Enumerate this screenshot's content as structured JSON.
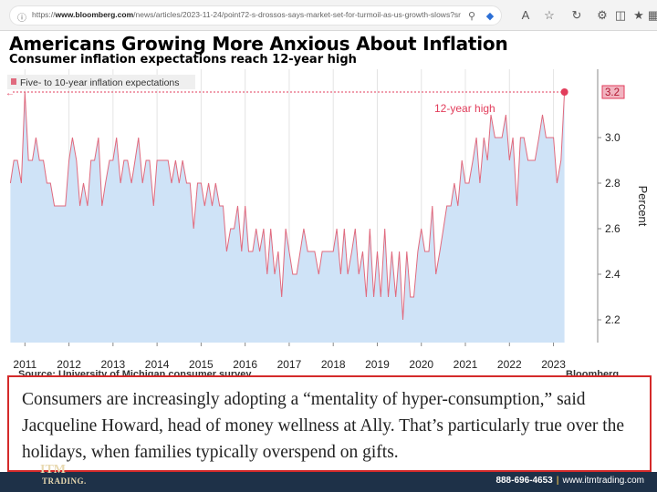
{
  "browser": {
    "url_prefix": "https://",
    "url_domain": "www.bloomberg.com",
    "url_path": "/news/articles/2023-11-24/point72-s-drossos-says-market-set-for-turmoil-as-us-growth-slows?sref=rWFqAg...",
    "icons": [
      "info-icon",
      "search-icon",
      "tag-icon",
      "read-aloud-icon",
      "favorite-icon",
      "refresh-icon",
      "extensions-icon",
      "split-screen-icon",
      "favorites-bar-icon",
      "collections-icon",
      "more-icon"
    ]
  },
  "chart_data": {
    "type": "area",
    "title": "Americans Growing More Anxious About Inflation",
    "subtitle": "Consumer inflation expectations reach 12-year high",
    "legend": "Five- to 10-year inflation expectations",
    "legend_position": "top-left",
    "ylabel": "Percent",
    "ylim": [
      2.1,
      3.3
    ],
    "yticks": [
      "2.2",
      "2.4",
      "2.6",
      "2.8",
      "3.0"
    ],
    "xticks": [
      "2011",
      "2012",
      "2013",
      "2014",
      "2015",
      "2016",
      "2017",
      "2018",
      "2019",
      "2020",
      "2021",
      "2022",
      "2023"
    ],
    "xlim": [
      2010.6,
      2023.9
    ],
    "grid": "vertical",
    "annotation": "12-year high",
    "highlight_value": "3.2",
    "series": [
      {
        "values": [
          [
            2010.67,
            2.8
          ],
          [
            2010.75,
            2.9
          ],
          [
            2010.83,
            2.9
          ],
          [
            2010.92,
            2.8
          ],
          [
            2011.0,
            3.2
          ],
          [
            2011.08,
            2.9
          ],
          [
            2011.17,
            2.9
          ],
          [
            2011.25,
            3.0
          ],
          [
            2011.33,
            2.9
          ],
          [
            2011.42,
            2.9
          ],
          [
            2011.5,
            2.8
          ],
          [
            2011.58,
            2.8
          ],
          [
            2011.67,
            2.7
          ],
          [
            2011.75,
            2.7
          ],
          [
            2011.83,
            2.7
          ],
          [
            2011.92,
            2.7
          ],
          [
            2012.0,
            2.9
          ],
          [
            2012.08,
            3.0
          ],
          [
            2012.17,
            2.9
          ],
          [
            2012.25,
            2.7
          ],
          [
            2012.33,
            2.8
          ],
          [
            2012.42,
            2.7
          ],
          [
            2012.5,
            2.9
          ],
          [
            2012.58,
            2.9
          ],
          [
            2012.67,
            3.0
          ],
          [
            2012.75,
            2.7
          ],
          [
            2012.83,
            2.8
          ],
          [
            2012.92,
            2.9
          ],
          [
            2013.0,
            2.9
          ],
          [
            2013.08,
            3.0
          ],
          [
            2013.17,
            2.8
          ],
          [
            2013.25,
            2.9
          ],
          [
            2013.33,
            2.9
          ],
          [
            2013.42,
            2.8
          ],
          [
            2013.5,
            2.9
          ],
          [
            2013.58,
            3.0
          ],
          [
            2013.67,
            2.8
          ],
          [
            2013.75,
            2.9
          ],
          [
            2013.83,
            2.9
          ],
          [
            2013.92,
            2.7
          ],
          [
            2014.0,
            2.9
          ],
          [
            2014.08,
            2.9
          ],
          [
            2014.17,
            2.9
          ],
          [
            2014.25,
            2.9
          ],
          [
            2014.33,
            2.8
          ],
          [
            2014.42,
            2.9
          ],
          [
            2014.5,
            2.8
          ],
          [
            2014.58,
            2.9
          ],
          [
            2014.67,
            2.8
          ],
          [
            2014.75,
            2.8
          ],
          [
            2014.83,
            2.6
          ],
          [
            2014.92,
            2.8
          ],
          [
            2015.0,
            2.8
          ],
          [
            2015.08,
            2.7
          ],
          [
            2015.17,
            2.8
          ],
          [
            2015.25,
            2.7
          ],
          [
            2015.33,
            2.8
          ],
          [
            2015.42,
            2.7
          ],
          [
            2015.5,
            2.7
          ],
          [
            2015.58,
            2.5
          ],
          [
            2015.67,
            2.6
          ],
          [
            2015.75,
            2.6
          ],
          [
            2015.83,
            2.7
          ],
          [
            2015.92,
            2.5
          ],
          [
            2016.0,
            2.7
          ],
          [
            2016.08,
            2.5
          ],
          [
            2016.17,
            2.5
          ],
          [
            2016.25,
            2.6
          ],
          [
            2016.33,
            2.5
          ],
          [
            2016.42,
            2.6
          ],
          [
            2016.5,
            2.4
          ],
          [
            2016.58,
            2.6
          ],
          [
            2016.67,
            2.4
          ],
          [
            2016.75,
            2.5
          ],
          [
            2016.83,
            2.3
          ],
          [
            2016.92,
            2.6
          ],
          [
            2017.0,
            2.5
          ],
          [
            2017.08,
            2.4
          ],
          [
            2017.17,
            2.4
          ],
          [
            2017.25,
            2.5
          ],
          [
            2017.33,
            2.6
          ],
          [
            2017.42,
            2.5
          ],
          [
            2017.5,
            2.5
          ],
          [
            2017.58,
            2.5
          ],
          [
            2017.67,
            2.4
          ],
          [
            2017.75,
            2.5
          ],
          [
            2017.83,
            2.5
          ],
          [
            2017.92,
            2.5
          ],
          [
            2018.0,
            2.5
          ],
          [
            2018.08,
            2.6
          ],
          [
            2018.17,
            2.4
          ],
          [
            2018.25,
            2.6
          ],
          [
            2018.33,
            2.4
          ],
          [
            2018.42,
            2.5
          ],
          [
            2018.5,
            2.6
          ],
          [
            2018.58,
            2.4
          ],
          [
            2018.67,
            2.5
          ],
          [
            2018.75,
            2.3
          ],
          [
            2018.83,
            2.6
          ],
          [
            2018.92,
            2.3
          ],
          [
            2019.0,
            2.5
          ],
          [
            2019.08,
            2.3
          ],
          [
            2019.17,
            2.6
          ],
          [
            2019.25,
            2.3
          ],
          [
            2019.33,
            2.5
          ],
          [
            2019.42,
            2.3
          ],
          [
            2019.5,
            2.5
          ],
          [
            2019.58,
            2.2
          ],
          [
            2019.67,
            2.5
          ],
          [
            2019.75,
            2.3
          ],
          [
            2019.83,
            2.3
          ],
          [
            2019.92,
            2.5
          ],
          [
            2020.0,
            2.6
          ],
          [
            2020.08,
            2.5
          ],
          [
            2020.17,
            2.5
          ],
          [
            2020.25,
            2.7
          ],
          [
            2020.33,
            2.4
          ],
          [
            2020.42,
            2.5
          ],
          [
            2020.5,
            2.6
          ],
          [
            2020.58,
            2.7
          ],
          [
            2020.67,
            2.7
          ],
          [
            2020.75,
            2.8
          ],
          [
            2020.83,
            2.7
          ],
          [
            2020.92,
            2.9
          ],
          [
            2021.0,
            2.8
          ],
          [
            2021.08,
            2.8
          ],
          [
            2021.17,
            2.9
          ],
          [
            2021.25,
            3.0
          ],
          [
            2021.33,
            2.8
          ],
          [
            2021.42,
            3.0
          ],
          [
            2021.5,
            2.9
          ],
          [
            2021.58,
            3.1
          ],
          [
            2021.67,
            3.0
          ],
          [
            2021.75,
            3.0
          ],
          [
            2021.83,
            3.0
          ],
          [
            2021.92,
            3.1
          ],
          [
            2022.0,
            2.9
          ],
          [
            2022.08,
            3.0
          ],
          [
            2022.17,
            2.7
          ],
          [
            2022.25,
            3.0
          ],
          [
            2022.33,
            3.0
          ],
          [
            2022.42,
            2.9
          ],
          [
            2022.5,
            2.9
          ],
          [
            2022.58,
            2.9
          ],
          [
            2022.67,
            3.0
          ],
          [
            2022.75,
            3.1
          ],
          [
            2022.83,
            3.0
          ],
          [
            2022.92,
            3.0
          ],
          [
            2023.0,
            3.0
          ],
          [
            2023.08,
            2.8
          ],
          [
            2023.17,
            2.9
          ],
          [
            2023.25,
            3.2
          ]
        ]
      }
    ]
  },
  "hidden_text": {
    "source_peek": "Source: University of Michigan consumer survey",
    "brand_peek": "Bloomberg"
  },
  "quote": "Consumers are increasingly adopting a “mentality of hyper-consumption,” said Jacqueline Howard, head of money wellness at Ally. That’s particularly true over the holidays, when families typically overspend on gifts.",
  "footer": {
    "brand": "ITM",
    "brand_sub": "TRADING.",
    "phone": "888-696-4653",
    "separator": "|",
    "website": "www.itmtrading.com"
  },
  "colors": {
    "area_fill": "#cfe3f7",
    "line": "#e06a7e",
    "highlight": "#e23d5b",
    "quote_border": "#d42a2a",
    "footer_bg": "#1e3148",
    "brand": "#e8d9b0"
  }
}
